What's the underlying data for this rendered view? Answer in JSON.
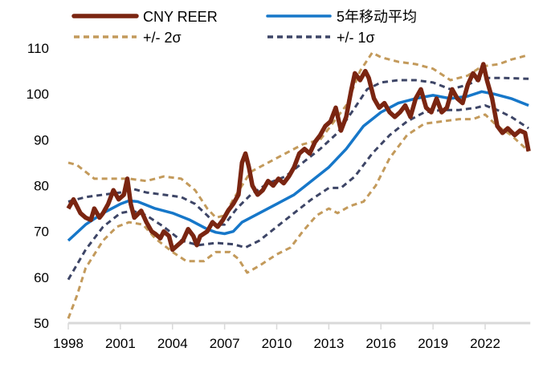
{
  "chart_data": {
    "type": "line",
    "title": "",
    "xlabel": "",
    "ylabel": "",
    "xlim": [
      1998,
      2024.6
    ],
    "ylim": [
      50,
      110
    ],
    "x_ticks": [
      "1998",
      "2001",
      "2004",
      "2007",
      "2010",
      "2013",
      "2016",
      "2019",
      "2022"
    ],
    "y_ticks": [
      "50",
      "60",
      "70",
      "80",
      "90",
      "100",
      "110"
    ],
    "grid": false,
    "legend_position": "top",
    "series": [
      {
        "name": "CNY REER",
        "color": "#7a2511",
        "style": "solid-thick",
        "x": [
          1998,
          1998.3,
          1998.7,
          1999,
          1999.3,
          1999.5,
          1999.8,
          2000,
          2000.3,
          2000.6,
          2000.9,
          2001.2,
          2001.4,
          2001.6,
          2001.8,
          2002.2,
          2002.5,
          2002.8,
          2003,
          2003.3,
          2003.5,
          2003.8,
          2004,
          2004.3,
          2004.6,
          2004.9,
          2005.2,
          2005.4,
          2005.6,
          2006,
          2006.3,
          2006.6,
          2006.9,
          2007.2,
          2007.5,
          2007.8,
          2008,
          2008.2,
          2008.4,
          2008.6,
          2008.9,
          2009.2,
          2009.5,
          2009.8,
          2010.1,
          2010.4,
          2010.7,
          2011,
          2011.3,
          2011.6,
          2011.9,
          2012.2,
          2012.5,
          2012.8,
          2013.1,
          2013.4,
          2013.7,
          2014,
          2014.3,
          2014.5,
          2014.8,
          2015.1,
          2015.3,
          2015.6,
          2015.9,
          2016.2,
          2016.5,
          2016.8,
          2017.1,
          2017.4,
          2017.7,
          2018,
          2018.3,
          2018.6,
          2018.9,
          2019.2,
          2019.5,
          2019.8,
          2020.1,
          2020.4,
          2020.7,
          2021,
          2021.3,
          2021.6,
          2021.9,
          2022.1,
          2022.4,
          2022.7,
          2023,
          2023.3,
          2023.7,
          2024,
          2024.3,
          2024.5
        ],
        "y": [
          75,
          77,
          74,
          73,
          72.5,
          75,
          73,
          74,
          76,
          79,
          77,
          78,
          81.5,
          76,
          73,
          74.5,
          72,
          70,
          69.5,
          68.5,
          70,
          69,
          66,
          67,
          68,
          70.5,
          69,
          67,
          69,
          70,
          72,
          71,
          72.5,
          74.5,
          76,
          78,
          85,
          87,
          84,
          80,
          78,
          79,
          81,
          80,
          81.5,
          80.5,
          82,
          84,
          87,
          88,
          87,
          89.5,
          91,
          93,
          94,
          97,
          92,
          95,
          101,
          104.5,
          103,
          105,
          103.5,
          99,
          97,
          98,
          96,
          95,
          96,
          97.5,
          95,
          99,
          101,
          97,
          96,
          99,
          96,
          97,
          101,
          99,
          98,
          102,
          104.5,
          103,
          106.5,
          103,
          99,
          93,
          91.5,
          92.5,
          91,
          92,
          91.5,
          87.5
        ]
      },
      {
        "name": "5年移动平均",
        "color": "#1677c9",
        "style": "solid",
        "x": [
          1998,
          1999,
          2000,
          2001,
          2001.5,
          2002,
          2003,
          2004,
          2005,
          2006,
          2006.5,
          2007,
          2007.5,
          2008,
          2009,
          2010,
          2011,
          2012,
          2013,
          2014,
          2015,
          2016,
          2017,
          2018,
          2019,
          2020,
          2021,
          2021.8,
          2022.5,
          2023.5,
          2024.5
        ],
        "y": [
          68,
          71.5,
          74,
          76,
          76.7,
          76.5,
          75,
          74,
          72.5,
          70.5,
          69.8,
          69.5,
          70,
          72,
          74,
          76,
          78,
          81,
          84,
          88,
          93,
          96,
          98,
          99,
          99.7,
          99,
          99.5,
          100.5,
          100,
          99,
          97.5
        ]
      },
      {
        "name": "+/- 2σ",
        "color": "#c39a5b",
        "style": "dashed",
        "x": [
          1998,
          1998.5,
          1999,
          1999.5,
          2000,
          2001,
          2001.5,
          2002.5,
          2003.5,
          2004.5,
          2005.3,
          2006,
          2006.5,
          2007,
          2007.5,
          2008.5,
          2009.5,
          2010.5,
          2011.5,
          2012.5,
          2013.3,
          2014,
          2014.8,
          2015.5,
          2016,
          2017,
          2018,
          2019,
          2020,
          2021,
          2021.8,
          2022.8,
          2023.5,
          2024.5
        ],
        "y": [
          85,
          84.5,
          83,
          81.5,
          81.5,
          81.5,
          81.5,
          81,
          82,
          81.5,
          79,
          75,
          73,
          73.5,
          77,
          83,
          85,
          87,
          89,
          90,
          94,
          97.5,
          105,
          109,
          108,
          107,
          106.5,
          105.5,
          103,
          104,
          106,
          106.5,
          107.5,
          108.5
        ]
      },
      {
        "series_of": "+/- 2σ",
        "color": "#c39a5b",
        "style": "dashed",
        "x": [
          1998,
          1998.5,
          1999,
          2000,
          2000.8,
          2001.5,
          2002.3,
          2003,
          2004,
          2004.8,
          2005.8,
          2006.5,
          2007.3,
          2007.8,
          2008.3,
          2009,
          2010,
          2010.8,
          2011.5,
          2012.3,
          2013,
          2013.5,
          2014.2,
          2015,
          2015.7,
          2016.5,
          2017.5,
          2018.5,
          2019.5,
          2020.5,
          2021.3,
          2022,
          2022.7,
          2023.5,
          2024.5
        ],
        "y": [
          51,
          56,
          62,
          68,
          71,
          72,
          71.5,
          68.5,
          65.5,
          63.5,
          63.5,
          65.5,
          65.5,
          64,
          61,
          62.5,
          65,
          66.5,
          70,
          73.5,
          75,
          74,
          75.5,
          76.5,
          80,
          86,
          91,
          93.5,
          94,
          94.5,
          94.5,
          95.5,
          93,
          91,
          87.5
        ]
      },
      {
        "name": "+/- 1σ",
        "color": "#3d4566",
        "style": "dashed",
        "x": [
          1998,
          1999,
          2000,
          2001,
          2001.7,
          2002.5,
          2003.5,
          2004.5,
          2005.3,
          2006,
          2006.5,
          2007,
          2007.7,
          2008.5,
          2009.5,
          2010.5,
          2011.5,
          2012.5,
          2013.5,
          2014.5,
          2015.2,
          2016,
          2017,
          2018,
          2019,
          2020,
          2021,
          2021.8,
          2023,
          2024.5
        ],
        "y": [
          76.5,
          77.5,
          78,
          78.5,
          79.3,
          78.5,
          78,
          77.5,
          76,
          73.5,
          71.5,
          71.5,
          75,
          78,
          80.5,
          82,
          85,
          88,
          91.5,
          97,
          101,
          102.5,
          103,
          103,
          102.5,
          101,
          102,
          103.5,
          103.5,
          103.3
        ]
      },
      {
        "series_of": "+/- 1σ",
        "color": "#3d4566",
        "style": "dashed",
        "x": [
          1998,
          1999,
          2000,
          2001,
          2001.7,
          2002.5,
          2003.5,
          2004.5,
          2005.5,
          2006.5,
          2007.5,
          2008.2,
          2009,
          2010,
          2011,
          2012,
          2013,
          2013.7,
          2014.5,
          2015.5,
          2016.5,
          2017.5,
          2018.5,
          2019.5,
          2020.5,
          2021.5,
          2022,
          2022.7,
          2023.5,
          2024.5
        ],
        "y": [
          59.5,
          66,
          71,
          74,
          74.5,
          73.5,
          71,
          68,
          67,
          67.5,
          67.2,
          66.5,
          68,
          71,
          74,
          77,
          79.5,
          79.5,
          82,
          87,
          91,
          94,
          96,
          96.5,
          96.5,
          97,
          97.5,
          96.5,
          95,
          92.5
        ]
      }
    ]
  }
}
